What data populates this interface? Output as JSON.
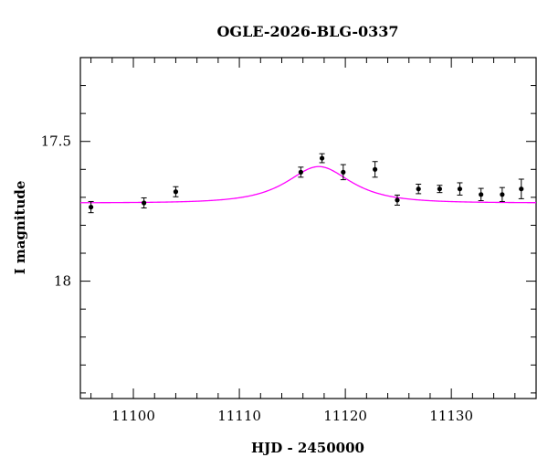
{
  "chart_data": {
    "type": "scatter",
    "title": "OGLE-2026-BLG-0337",
    "xlabel": "HJD - 2450000",
    "ylabel": "I magnitude",
    "xlim": [
      11095,
      11138
    ],
    "ylim": [
      18.42,
      17.2
    ],
    "y_inverted": true,
    "grid": false,
    "x_ticks": [
      11100,
      11110,
      11120,
      11130
    ],
    "x_tick_labels": [
      "11100",
      "11110",
      "11120",
      "11130"
    ],
    "y_ticks": [
      17.5,
      18
    ],
    "y_tick_labels": [
      "17.5",
      "18"
    ],
    "x_minor_step": 2,
    "y_minor_step": 0.1,
    "series": [
      {
        "type": "scatter",
        "x": [
          11096,
          11101,
          11104,
          11115.8,
          11117.8,
          11119.8,
          11122.8,
          11124.9,
          11126.9,
          11128.9,
          11130.8,
          11132.8,
          11134.8,
          11136.6
        ],
        "y": [
          17.735,
          17.72,
          17.68,
          17.61,
          17.56,
          17.61,
          17.6,
          17.71,
          17.67,
          17.67,
          17.67,
          17.69,
          17.69,
          17.67
        ],
        "err": [
          0.02,
          0.018,
          0.018,
          0.018,
          0.016,
          0.027,
          0.028,
          0.018,
          0.017,
          0.013,
          0.022,
          0.022,
          0.025,
          0.035
        ]
      },
      {
        "type": "line",
        "model": "paczynski",
        "baseline": 17.72,
        "peak": 17.59,
        "t0": 11117.5,
        "width": 4.5,
        "x_range": [
          11095,
          11138
        ],
        "color": "#ff00ff"
      }
    ]
  }
}
